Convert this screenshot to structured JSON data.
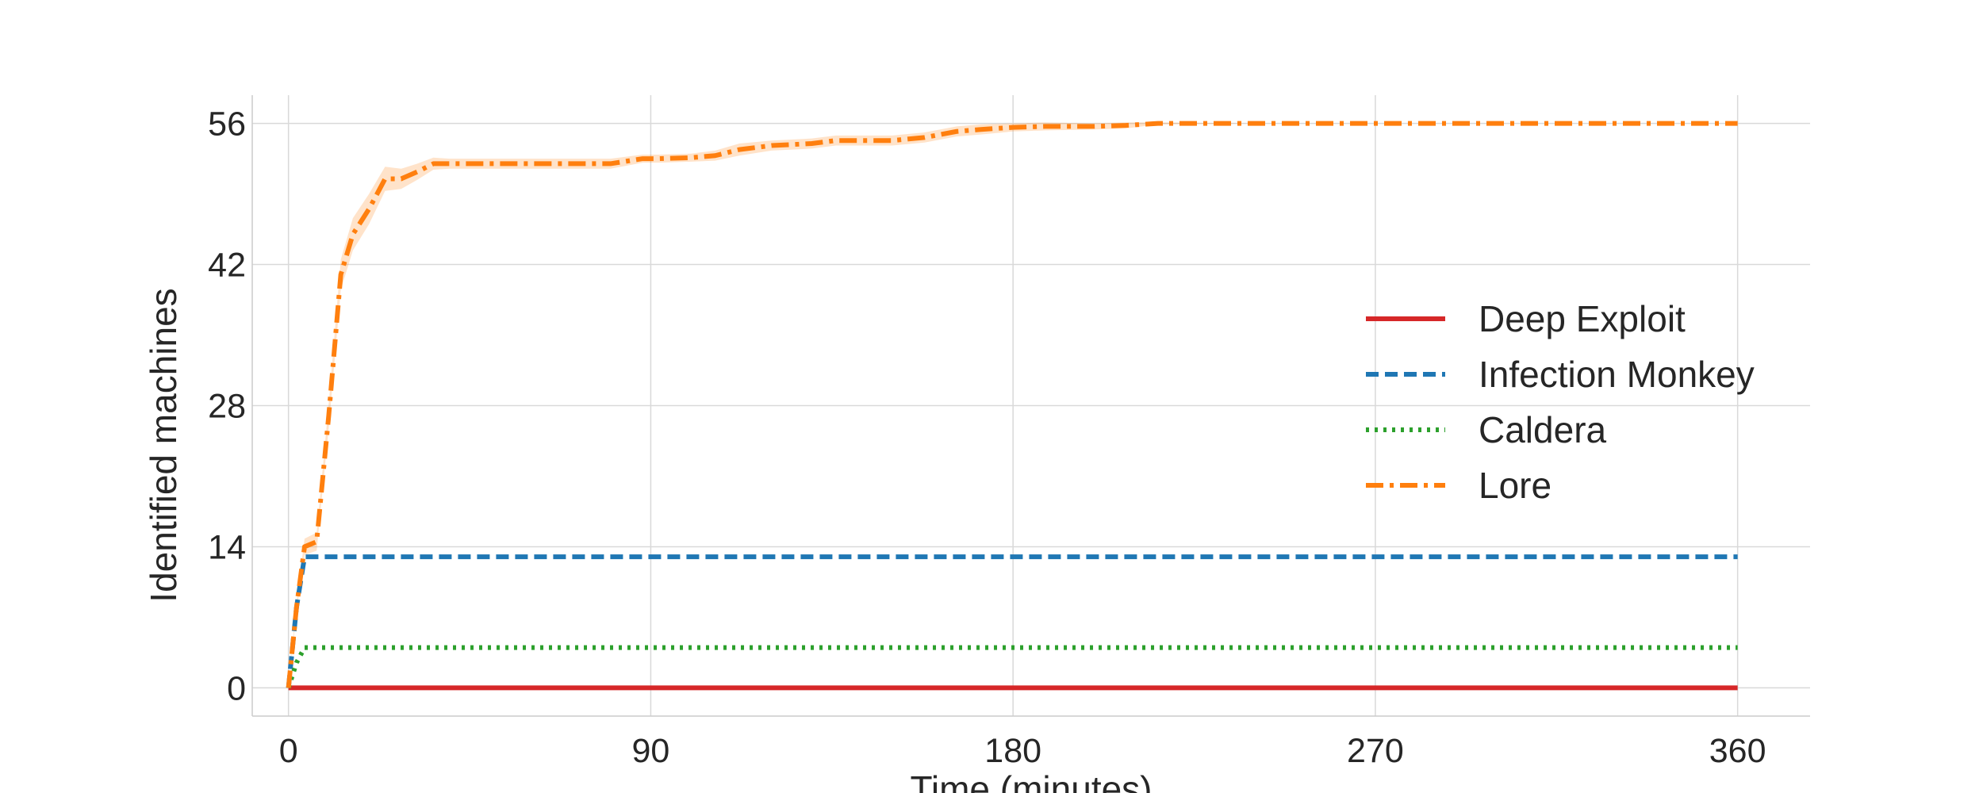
{
  "chart_data": {
    "type": "line",
    "title": "",
    "xlabel": "Time (minutes)",
    "ylabel": "Identified machines",
    "xlim": [
      -9,
      378
    ],
    "ylim": [
      -2.8,
      58.8
    ],
    "xticks": [
      0,
      90,
      180,
      270,
      360
    ],
    "yticks": [
      0,
      14,
      28,
      42,
      56
    ],
    "grid": true,
    "legend_position": "center-right",
    "series": [
      {
        "name": "Deep Exploit",
        "color": "#d62728",
        "style": "solid",
        "x": [
          0,
          360
        ],
        "y": [
          0,
          0
        ]
      },
      {
        "name": "Infection Monkey",
        "color": "#1f77b4",
        "style": "dashed",
        "x": [
          0,
          2,
          4,
          360
        ],
        "y": [
          0,
          8,
          13,
          13
        ]
      },
      {
        "name": "Caldera",
        "color": "#2ca02c",
        "style": "dotted",
        "x": [
          0,
          2,
          4,
          360
        ],
        "y": [
          0,
          2.5,
          4,
          4
        ]
      },
      {
        "name": "Lore",
        "color": "#ff7f0e",
        "style": "dashdot",
        "x": [
          0,
          2,
          4,
          7,
          10,
          13,
          16,
          20,
          24,
          28,
          32,
          36,
          40,
          44,
          50,
          60,
          70,
          80,
          88,
          92,
          100,
          106,
          112,
          120,
          130,
          136,
          150,
          158,
          166,
          172,
          180,
          188,
          200,
          208,
          216,
          240,
          270,
          300,
          330,
          360
        ],
        "y": [
          0,
          8,
          14,
          14.5,
          27,
          41,
          45,
          47.5,
          50.5,
          50.5,
          51.2,
          52,
          52,
          52,
          52,
          52,
          52,
          52,
          52.5,
          52.5,
          52.6,
          52.8,
          53.4,
          53.8,
          54,
          54.3,
          54.3,
          54.6,
          55.2,
          55.4,
          55.6,
          55.7,
          55.7,
          55.8,
          56,
          56,
          56,
          56,
          56,
          56
        ],
        "band": [
          0,
          0.5,
          0.8,
          0.9,
          1.2,
          1.5,
          1.6,
          1.5,
          1.2,
          1.0,
          0.8,
          0.6,
          0.5,
          0.5,
          0.5,
          0.5,
          0.5,
          0.5,
          0.4,
          0.4,
          0.4,
          0.5,
          0.6,
          0.5,
          0.5,
          0.5,
          0.5,
          0.5,
          0.5,
          0.5,
          0.4,
          0.4,
          0.3,
          0.3,
          0.1,
          0,
          0,
          0,
          0,
          0
        ]
      }
    ]
  }
}
